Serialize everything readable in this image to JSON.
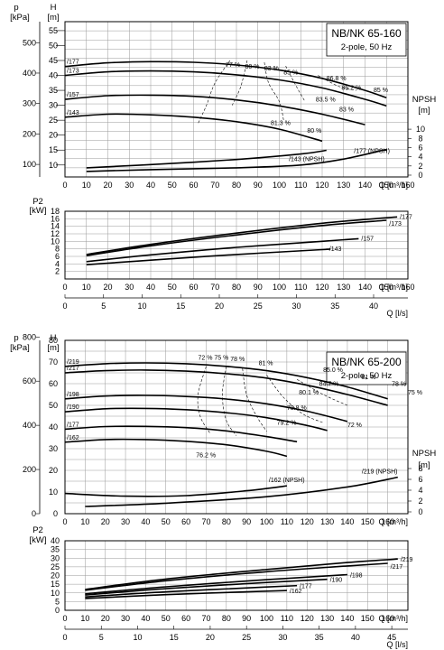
{
  "chart_data": [
    {
      "type": "line",
      "title": "NB/NK 65-160",
      "subtitle": "2-pole, 50 Hz",
      "left_label_p": "p",
      "left_unit_p": "[kPa]",
      "left_label_h": "H",
      "left_unit_h": "[m]",
      "right_label": "NPSH",
      "right_unit": "[m]",
      "x_unit": "Q [m³/h]",
      "xlim": [
        0,
        160
      ],
      "x_ticks": [
        "0",
        "10",
        "20",
        "30",
        "40",
        "50",
        "60",
        "70",
        "80",
        "90",
        "100",
        "110",
        "120",
        "130",
        "140",
        "150",
        "160"
      ],
      "ylim_h": [
        6,
        58
      ],
      "h_ticks": [
        "10",
        "15",
        "20",
        "25",
        "30",
        "35",
        "40",
        "45",
        "50",
        "55"
      ],
      "p_ticks": [
        "100",
        "200",
        "300",
        "400",
        "500"
      ],
      "npsh_ticks": [
        "0",
        "2",
        "4",
        "6",
        "8",
        "10"
      ],
      "series": [
        {
          "name": "/177",
          "x": [
            0,
            20,
            40,
            60,
            80,
            100,
            120,
            140,
            150
          ],
          "y": [
            43,
            44.2,
            44.6,
            44.4,
            43.5,
            41.8,
            39,
            35,
            32.5
          ]
        },
        {
          "name": "/173",
          "x": [
            0,
            20,
            40,
            60,
            80,
            100,
            120,
            140,
            150
          ],
          "y": [
            40,
            41.2,
            41.5,
            41.2,
            40.2,
            38.5,
            35.8,
            32,
            29.8
          ]
        },
        {
          "name": "/157",
          "x": [
            0,
            20,
            40,
            60,
            80,
            100,
            120,
            140
          ],
          "y": [
            32,
            33.2,
            33.4,
            33,
            31.8,
            29.8,
            27,
            23.5
          ]
        },
        {
          "name": "/143",
          "x": [
            0,
            20,
            40,
            60,
            80,
            100,
            120
          ],
          "y": [
            26,
            27,
            26.8,
            26,
            24.5,
            22,
            18
          ]
        }
      ],
      "npsh_series": [
        {
          "name": "/177 (NPSH)",
          "x": [
            10,
            40,
            80,
            110,
            130,
            150
          ],
          "y": [
            0.8,
            1.2,
            1.6,
            2.2,
            3.5,
            5.6
          ]
        },
        {
          "name": "/143 (NPSH)",
          "x": [
            10,
            40,
            80,
            110,
            122
          ],
          "y": [
            1.6,
            2.3,
            3.4,
            4.6,
            5.4
          ]
        }
      ],
      "efficiency_labels": [
        "77 %",
        "80 %",
        "83 %",
        "85 %",
        "86.8 %",
        "85 %",
        "86.2 %",
        "83.5 %",
        "83 %",
        "81.3 %",
        "80 %"
      ]
    },
    {
      "type": "line",
      "title": "",
      "ylabel": "P2",
      "y_unit": "[kW]",
      "x_unit": "Q [m³/h]",
      "xlim": [
        0,
        160
      ],
      "x_ticks": [
        "0",
        "10",
        "20",
        "30",
        "40",
        "50",
        "60",
        "70",
        "80",
        "90",
        "100",
        "110",
        "120",
        "130",
        "140",
        "150",
        "160"
      ],
      "ylim": [
        0,
        18
      ],
      "y_ticks": [
        "2",
        "4",
        "6",
        "8",
        "10",
        "12",
        "14",
        "16",
        "18"
      ],
      "x2_unit": "Q [l/s]",
      "x2_ticks": [
        "0",
        "5",
        "10",
        "15",
        "20",
        "25",
        "30",
        "35",
        "40"
      ],
      "series": [
        {
          "name": "/177",
          "x": [
            10,
            40,
            80,
            120,
            155
          ],
          "y": [
            6.5,
            9.2,
            12.2,
            14.8,
            16.5
          ]
        },
        {
          "name": "/173",
          "x": [
            10,
            40,
            80,
            120,
            150
          ],
          "y": [
            6.2,
            8.8,
            11.7,
            14.2,
            15.6
          ]
        },
        {
          "name": "/157",
          "x": [
            10,
            40,
            80,
            120,
            137
          ],
          "y": [
            4.6,
            6.4,
            8.4,
            10,
            10.7
          ]
        },
        {
          "name": "/143",
          "x": [
            10,
            40,
            80,
            120,
            122
          ],
          "y": [
            3.8,
            5,
            6.5,
            7.8,
            7.9
          ]
        }
      ]
    },
    {
      "type": "line",
      "title": "NB/NK 65-200",
      "subtitle": "2-pole, 50 Hz",
      "left_label_p": "p",
      "left_unit_p": "[kPa]",
      "left_label_h": "H",
      "left_unit_h": "[m]",
      "right_label": "NPSH",
      "right_unit": "[m]",
      "x_unit": "Q [m³/h]",
      "xlim": [
        0,
        170
      ],
      "x_ticks": [
        "0",
        "10",
        "20",
        "30",
        "40",
        "50",
        "60",
        "70",
        "80",
        "90",
        "100",
        "110",
        "120",
        "130",
        "140",
        "150",
        "160"
      ],
      "ylim_h": [
        0,
        80
      ],
      "h_ticks": [
        "0",
        "10",
        "20",
        "30",
        "40",
        "50",
        "60",
        "70",
        "80"
      ],
      "p_ticks": [
        "0",
        "200",
        "400",
        "600",
        "800"
      ],
      "npsh_ticks": [
        "0",
        "2",
        "4",
        "6",
        "8"
      ],
      "series": [
        {
          "name": "/219",
          "x": [
            0,
            20,
            40,
            60,
            80,
            100,
            120,
            140,
            160
          ],
          "y": [
            68,
            69.2,
            69.6,
            69.2,
            68,
            66,
            62.8,
            58.5,
            53
          ]
        },
        {
          "name": "/217",
          "x": [
            0,
            20,
            40,
            60,
            80,
            100,
            120,
            140,
            160
          ],
          "y": [
            65,
            66,
            66.3,
            65.8,
            64.6,
            62.6,
            59.3,
            55,
            50
          ]
        },
        {
          "name": "/198",
          "x": [
            0,
            20,
            40,
            60,
            80,
            100,
            120,
            140
          ],
          "y": [
            53,
            54.3,
            54.6,
            54.1,
            52.9,
            50.7,
            47.3,
            42.6
          ]
        },
        {
          "name": "/190",
          "x": [
            0,
            20,
            40,
            60,
            80,
            100,
            120,
            130
          ],
          "y": [
            47,
            48.4,
            48.6,
            48,
            46.6,
            44.3,
            40.7,
            38.4
          ]
        },
        {
          "name": "/177",
          "x": [
            0,
            20,
            40,
            60,
            80,
            100,
            115
          ],
          "y": [
            39,
            40.2,
            40.3,
            39.7,
            38.2,
            35.6,
            33.2
          ]
        },
        {
          "name": "/162",
          "x": [
            0,
            20,
            40,
            60,
            80,
            100,
            110
          ],
          "y": [
            33,
            34.2,
            34.2,
            33.4,
            31.8,
            28.8,
            26.5
          ]
        }
      ],
      "npsh_series": [
        {
          "name": "/219 (NPSH)",
          "x": [
            10,
            50,
            100,
            140,
            165
          ],
          "y": [
            1,
            1.6,
            2.8,
            4.6,
            6.4
          ]
        },
        {
          "name": "/162 (NPSH)",
          "x": [
            0,
            30,
            60,
            90,
            110
          ],
          "y": [
            3.4,
            2.9,
            3.0,
            3.9,
            4.8
          ]
        }
      ],
      "efficiency_labels": [
        "72 %",
        "75 %",
        "78 %",
        "81 %",
        "85.0 %",
        "81 %",
        "78 %",
        "75 %",
        "84.7 %",
        "80.1 %",
        "79.8 %",
        "79.2 %",
        "72 %",
        "76.2 %"
      ]
    },
    {
      "type": "line",
      "title": "",
      "ylabel": "P2",
      "y_unit": "[kW]",
      "x_unit": "Q [m³/h]",
      "xlim": [
        0,
        170
      ],
      "x_ticks": [
        "0",
        "10",
        "20",
        "30",
        "40",
        "50",
        "60",
        "70",
        "80",
        "90",
        "100",
        "110",
        "120",
        "130",
        "140",
        "150",
        "160"
      ],
      "ylim": [
        0,
        40
      ],
      "y_ticks": [
        "0",
        "5",
        "10",
        "15",
        "20",
        "25",
        "30",
        "35",
        "40"
      ],
      "x2_unit": "Q [l/s]",
      "x2_ticks": [
        "0",
        "5",
        "10",
        "15",
        "20",
        "25",
        "30",
        "35",
        "40",
        "45"
      ],
      "series": [
        {
          "name": "/219",
          "x": [
            10,
            50,
            100,
            140,
            165
          ],
          "y": [
            12,
            18,
            23.5,
            27.5,
            29.5
          ]
        },
        {
          "name": "/217",
          "x": [
            10,
            50,
            100,
            140,
            160
          ],
          "y": [
            11.5,
            17,
            22.2,
            25.5,
            27
          ]
        },
        {
          "name": "/198",
          "x": [
            10,
            50,
            100,
            140
          ],
          "y": [
            9.5,
            13.5,
            17.6,
            20.5
          ]
        },
        {
          "name": "/190",
          "x": [
            10,
            50,
            100,
            130
          ],
          "y": [
            8.8,
            12.4,
            16,
            17.8
          ]
        },
        {
          "name": "/177",
          "x": [
            10,
            50,
            100,
            115
          ],
          "y": [
            7.7,
            10.6,
            13.4,
            14.2
          ]
        },
        {
          "name": "/162",
          "x": [
            10,
            50,
            100,
            110
          ],
          "y": [
            6.8,
            9,
            11,
            11.4
          ]
        }
      ]
    }
  ]
}
